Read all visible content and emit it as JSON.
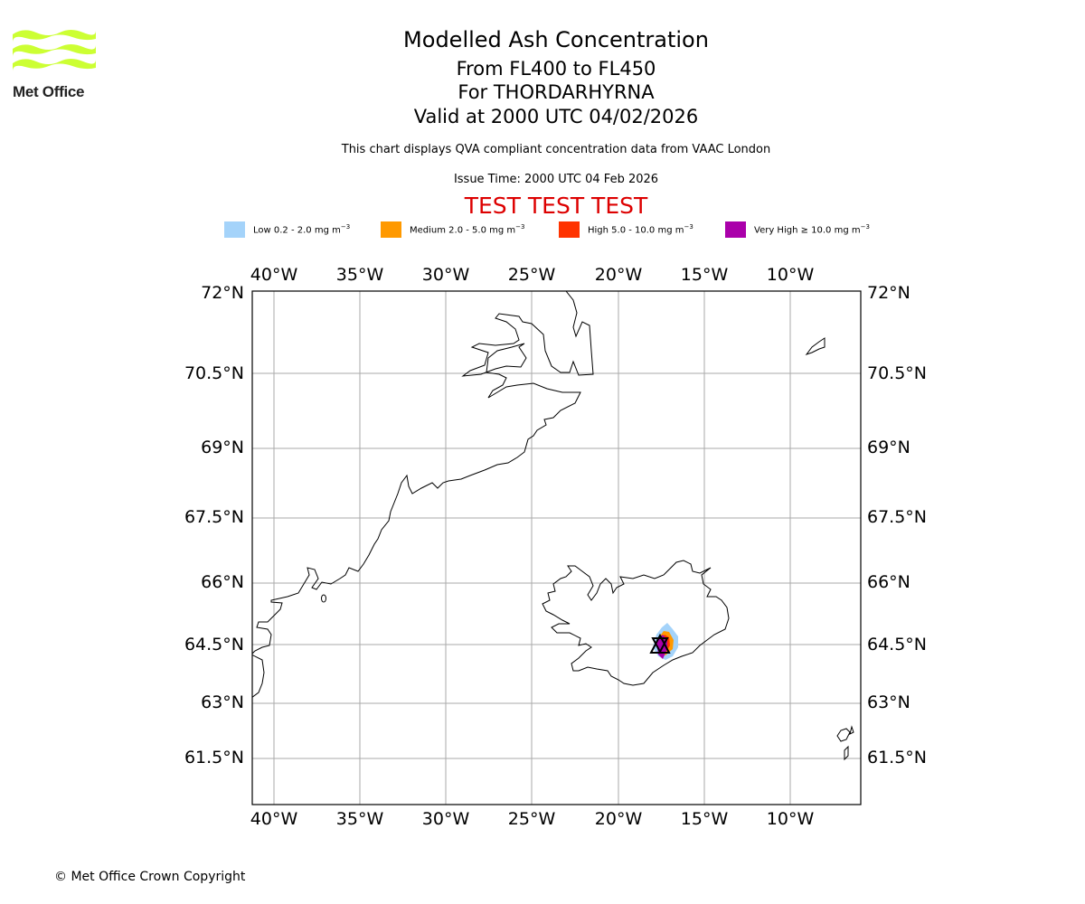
{
  "logo": {
    "text": "Met Office",
    "color": "#ccff33"
  },
  "title": "Modelled Ash Concentration",
  "flight_levels": "From FL400 to FL450",
  "volcano": "For THORDARHYRNA",
  "valid_time": "Valid at 2000 UTC 04/02/2026",
  "description": "This chart displays QVA compliant concentration data from VAAC London",
  "issue_time": "Issue Time: 2000 UTC 04 Feb 2026",
  "test_banner": "TEST TEST TEST",
  "legend": [
    {
      "label": "Low 0.2 - 2.0 mg m",
      "sup": "−3",
      "color": "#a4d3fa"
    },
    {
      "label": "Medium 2.0 - 5.0 mg m",
      "sup": "−3",
      "color": "#ff9900"
    },
    {
      "label": "High 5.0 - 10.0 mg m",
      "sup": "−3",
      "color": "#ff3300"
    },
    {
      "label": "Very High ≥ 10.0 mg m",
      "sup": "−3",
      "color": "#aa00aa"
    }
  ],
  "map": {
    "lon_ticks": [
      "40°W",
      "35°W",
      "30°W",
      "25°W",
      "20°W",
      "15°W",
      "10°W"
    ],
    "lat_ticks": [
      "72°N",
      "70.5°N",
      "69°N",
      "67.5°N",
      "66°N",
      "64.5°N",
      "63°N",
      "61.5°N"
    ],
    "volcano_symbol": "triangle"
  },
  "copyright": "© Met Office Crown Copyright"
}
